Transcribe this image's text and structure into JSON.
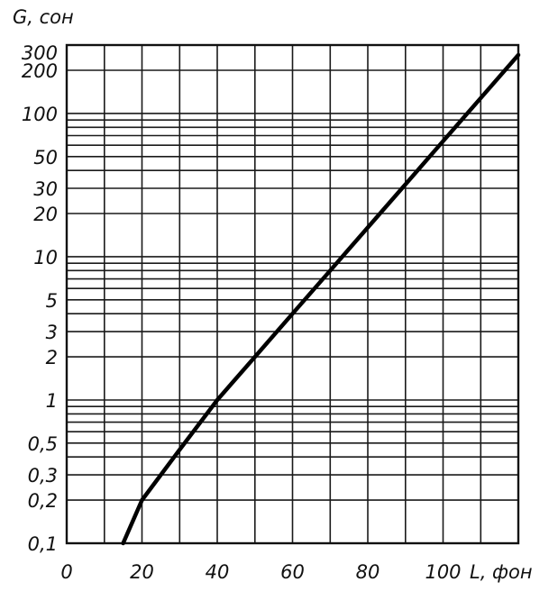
{
  "chart_data": {
    "type": "line",
    "title": "",
    "xlabel": "L, фон",
    "ylabel": "G, сон",
    "x_range": [
      0,
      120
    ],
    "y_range": [
      0.1,
      300
    ],
    "y_scale": "log",
    "grid": true,
    "x_tick_labels": [
      "0",
      "20",
      "40",
      "60",
      "80",
      "100"
    ],
    "x_ticks": [
      0,
      20,
      40,
      60,
      80,
      100
    ],
    "y_tick_labels": [
      "0,1",
      "0,2",
      "0,3",
      "0,5",
      "1",
      "2",
      "3",
      "5",
      "10",
      "20",
      "30",
      "50",
      "100",
      "200",
      "300"
    ],
    "y_ticks": [
      0.1,
      0.2,
      0.3,
      0.5,
      1,
      2,
      3,
      5,
      10,
      20,
      30,
      50,
      100,
      200,
      300
    ],
    "series": [
      {
        "x": [
          15,
          20,
          25,
          30,
          40,
          50,
          60,
          70,
          80,
          90,
          100,
          110,
          120
        ],
        "y": [
          0.1,
          0.2,
          0.3,
          0.45,
          1,
          2,
          4,
          8,
          16,
          32,
          64,
          128,
          256
        ]
      }
    ]
  }
}
